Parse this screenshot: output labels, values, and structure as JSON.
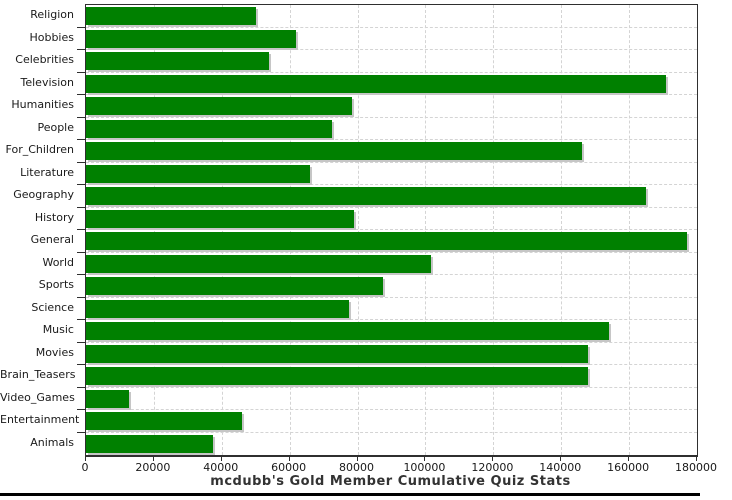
{
  "title": "mcdubb's Gold Member Cumulative Quiz Stats",
  "colors": {
    "bar": "#008000",
    "bar_shadow": "#c6c6c6",
    "grid": "#d4d4d4",
    "axis": "#2f2f2f",
    "label_text": "#1a1a1a",
    "title_text": "#333333",
    "bottom_strip": "#000000",
    "background": "#ffffff"
  },
  "chart_data": {
    "type": "bar",
    "orientation": "horizontal",
    "title": "mcdubb's Gold Member Cumulative Quiz Stats",
    "categories": [
      "Religion",
      "Hobbies",
      "Celebrities",
      "Television",
      "Humanities",
      "People",
      "For_Children",
      "Literature",
      "Geography",
      "History",
      "General",
      "World",
      "Sports",
      "Science",
      "Music",
      "Movies",
      "Brain_Teasers",
      "Video_Games",
      "Entertainment",
      "Animals"
    ],
    "values": [
      50000,
      62000,
      54000,
      171000,
      78500,
      72500,
      146000,
      66000,
      165000,
      79000,
      177000,
      101500,
      87500,
      77500,
      154000,
      148000,
      148000,
      12700,
      46000,
      37500
    ],
    "xlabel": "",
    "ylabel": "",
    "xlim": [
      0,
      180000
    ],
    "xticks": [
      0,
      20000,
      40000,
      60000,
      80000,
      100000,
      120000,
      140000,
      160000,
      180000
    ],
    "xtick_labels": [
      "0",
      "20000",
      "40000",
      "60000",
      "80000",
      "100000",
      "120000",
      "140000",
      "160000",
      "180000"
    ],
    "grid": "dashed horizontal and vertical",
    "legend": "none"
  }
}
